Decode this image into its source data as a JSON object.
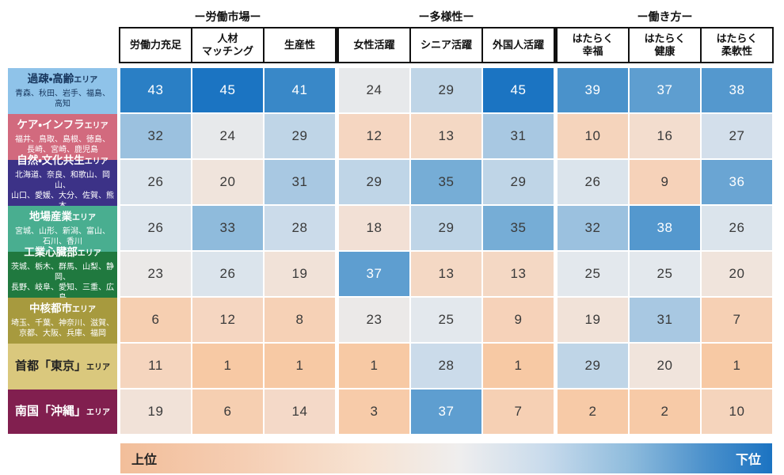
{
  "table": {
    "groups": [
      {
        "label": "ー労働市場ー"
      },
      {
        "label": "ー多様性ー"
      },
      {
        "label": "ー働き方ー"
      }
    ],
    "columns": [
      "労働力充足",
      "人材\nマッチング",
      "生産性",
      "女性活躍",
      "シニア活躍",
      "外国人活躍",
      "はたらく\n幸福",
      "はたらく\n健康",
      "はたらく\n柔軟性"
    ],
    "rows": [
      {
        "name": "過疎・高齢",
        "suffix": "エリア",
        "prefectures": "青森、秋田、岩手、福島、\n高知",
        "bg": "#8FC3E9",
        "text_color": "#17365D",
        "values": [
          43,
          45,
          41,
          24,
          29,
          45,
          39,
          37,
          38
        ]
      },
      {
        "name": "ケア・インフラ",
        "suffix": "エリア",
        "prefectures": "福井、鳥取、島根、徳島、\n長崎、宮崎、鹿児島",
        "bg": "#D26A7E",
        "text_color": "#FFFFFF",
        "values": [
          32,
          24,
          29,
          12,
          13,
          31,
          10,
          16,
          27
        ]
      },
      {
        "name": "自然・文化共生",
        "suffix": "エリア",
        "prefectures": "北海道、奈良、和歌山、岡山、\n山口、愛媛、大分、佐賀、熊本",
        "bg": "#3C3287",
        "text_color": "#FFFFFF",
        "values": [
          26,
          20,
          31,
          29,
          35,
          29,
          26,
          9,
          36
        ]
      },
      {
        "name": "地場産業",
        "suffix": "エリア",
        "prefectures": "宮城、山形、新潟、富山、\n石川、香川",
        "bg": "#49AE90",
        "text_color": "#FFFFFF",
        "values": [
          26,
          33,
          28,
          18,
          29,
          35,
          32,
          38,
          26
        ]
      },
      {
        "name": "工業心臓部",
        "suffix": "エリア",
        "prefectures": "茨城、栃木、群馬、山梨、静岡、\n長野、岐阜、愛知、三重、広島",
        "bg": "#20793F",
        "text_color": "#FFFFFF",
        "values": [
          23,
          26,
          19,
          37,
          13,
          13,
          25,
          25,
          20
        ]
      },
      {
        "name": "中核都市",
        "suffix": "エリア",
        "prefectures": "埼玉、千葉、神奈川、滋賀、\n京都、大阪、兵庫、福岡",
        "bg": "#A79A3E",
        "text_color": "#FFFFFF",
        "values": [
          6,
          12,
          8,
          23,
          25,
          9,
          19,
          31,
          7
        ]
      },
      {
        "name": "首都「東京」",
        "suffix": "エリア",
        "prefectures": "",
        "bg": "#DAC87D",
        "text_color": "#222222",
        "values": [
          11,
          1,
          1,
          1,
          28,
          1,
          29,
          20,
          1
        ]
      },
      {
        "name": "南国「沖縄」",
        "suffix": "エリア",
        "prefectures": "",
        "bg": "#811F4F",
        "text_color": "#FFFFFF",
        "values": [
          19,
          6,
          14,
          3,
          37,
          7,
          2,
          2,
          10
        ]
      }
    ]
  },
  "legend": {
    "left_label": "上位",
    "right_label": "下位",
    "low_color": "#F2BE9A",
    "high_color": "#1B73C2"
  },
  "chart_data": {
    "type": "heatmap",
    "title": "",
    "column_groups": [
      {
        "label": "ー労働市場ー",
        "span": 3
      },
      {
        "label": "ー多様性ー",
        "span": 3
      },
      {
        "label": "ー働き方ー",
        "span": 3
      }
    ],
    "columns": [
      "労働力充足",
      "人材マッチング",
      "生産性",
      "女性活躍",
      "シニア活躍",
      "外国人活躍",
      "はたらく幸福",
      "はたらく健康",
      "はたらく柔軟性"
    ],
    "rows": [
      "過疎・高齢エリア",
      "ケア・インフラエリア",
      "自然・文化共生エリア",
      "地場産業エリア",
      "工業心臓部エリア",
      "中核都市エリア",
      "首都「東京」エリア",
      "南国「沖縄」エリア"
    ],
    "row_prefectures": [
      "青森、秋田、岩手、福島、高知",
      "福井、鳥取、島根、徳島、長崎、宮崎、鹿児島",
      "北海道、奈良、和歌山、岡山、山口、愛媛、大分、佐賀、熊本",
      "宮城、山形、新潟、富山、石川、香川",
      "茨城、栃木、群馬、山梨、静岡、長野、岐阜、愛知、三重、広島",
      "埼玉、千葉、神奈川、滋賀、京都、大阪、兵庫、福岡",
      "",
      ""
    ],
    "values": [
      [
        43,
        45,
        41,
        24,
        29,
        45,
        39,
        37,
        38
      ],
      [
        32,
        24,
        29,
        12,
        13,
        31,
        10,
        16,
        27
      ],
      [
        26,
        20,
        31,
        29,
        35,
        29,
        26,
        9,
        36
      ],
      [
        26,
        33,
        28,
        18,
        29,
        35,
        32,
        38,
        26
      ],
      [
        23,
        26,
        19,
        37,
        13,
        13,
        25,
        25,
        20
      ],
      [
        6,
        12,
        8,
        23,
        25,
        9,
        19,
        31,
        7
      ],
      [
        11,
        1,
        1,
        1,
        28,
        1,
        29,
        20,
        1
      ],
      [
        19,
        6,
        14,
        3,
        37,
        7,
        2,
        2,
        10
      ]
    ],
    "scale": {
      "low_label": "上位",
      "high_label": "下位",
      "low_color": "#F2BE9A",
      "mid_color": "#EFEEEE",
      "high_color": "#1B73C2",
      "value_range": [
        1,
        45
      ]
    },
    "legend_position": "bottom"
  }
}
